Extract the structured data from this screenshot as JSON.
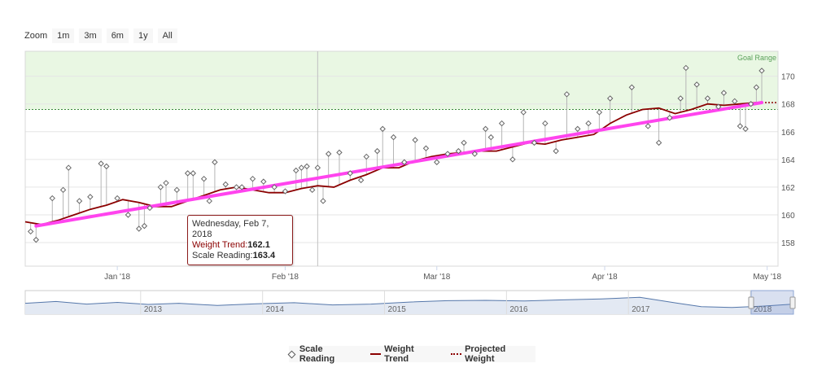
{
  "zoom": {
    "label": "Zoom",
    "buttons": [
      "1m",
      "3m",
      "6m",
      "1y",
      "All"
    ]
  },
  "colors": {
    "goal_band": "#e9f7e3",
    "trend": "#8b0000",
    "regression": "#ff44ee",
    "scale_point": "#666666",
    "navigator_line": "#5577aa"
  },
  "chart_data": {
    "type": "line",
    "goal_label": "Goal Range",
    "goal_range": [
      167.6,
      171.8
    ],
    "x_range": [
      "2017-12-15",
      "2018-05-03"
    ],
    "ylim": [
      156.3,
      171.8
    ],
    "y_ticks": [
      158,
      160,
      162,
      164,
      166,
      168,
      170
    ],
    "x_ticks": [
      {
        "label": "Jan '18",
        "date": "2018-01-01"
      },
      {
        "label": "Feb '18",
        "date": "2018-02-01"
      },
      {
        "label": "Mar '18",
        "date": "2018-03-01"
      },
      {
        "label": "Apr '18",
        "date": "2018-04-01"
      },
      {
        "label": "May '18",
        "date": "2018-05-01"
      }
    ],
    "crosshair_date": "2018-02-07",
    "series": [
      {
        "name": "Weight Trend",
        "points": [
          [
            "2017-12-15",
            159.5
          ],
          [
            "2017-12-18",
            159.3
          ],
          [
            "2017-12-21",
            159.6
          ],
          [
            "2017-12-24",
            160.0
          ],
          [
            "2017-12-27",
            160.4
          ],
          [
            "2017-12-30",
            160.7
          ],
          [
            "2018-01-02",
            161.1
          ],
          [
            "2018-01-05",
            160.9
          ],
          [
            "2018-01-08",
            160.6
          ],
          [
            "2018-01-11",
            160.6
          ],
          [
            "2018-01-14",
            161.0
          ],
          [
            "2018-01-17",
            161.4
          ],
          [
            "2018-01-20",
            161.8
          ],
          [
            "2018-01-23",
            162.0
          ],
          [
            "2018-01-26",
            161.8
          ],
          [
            "2018-01-29",
            161.6
          ],
          [
            "2018-02-01",
            161.6
          ],
          [
            "2018-02-04",
            161.9
          ],
          [
            "2018-02-07",
            162.1
          ],
          [
            "2018-02-10",
            162.0
          ],
          [
            "2018-02-13",
            162.5
          ],
          [
            "2018-02-16",
            162.9
          ],
          [
            "2018-02-19",
            163.4
          ],
          [
            "2018-02-22",
            163.4
          ],
          [
            "2018-02-25",
            163.9
          ],
          [
            "2018-02-28",
            164.2
          ],
          [
            "2018-03-03",
            164.4
          ],
          [
            "2018-03-06",
            164.5
          ],
          [
            "2018-03-09",
            164.6
          ],
          [
            "2018-03-12",
            164.6
          ],
          [
            "2018-03-15",
            164.9
          ],
          [
            "2018-03-18",
            165.2
          ],
          [
            "2018-03-21",
            165.1
          ],
          [
            "2018-03-24",
            165.4
          ],
          [
            "2018-03-27",
            165.6
          ],
          [
            "2018-03-30",
            165.8
          ],
          [
            "2018-04-02",
            166.6
          ],
          [
            "2018-04-05",
            167.2
          ],
          [
            "2018-04-08",
            167.6
          ],
          [
            "2018-04-11",
            167.7
          ],
          [
            "2018-04-14",
            167.3
          ],
          [
            "2018-04-17",
            167.6
          ],
          [
            "2018-04-20",
            168.0
          ],
          [
            "2018-04-23",
            167.9
          ],
          [
            "2018-04-26",
            168.0
          ],
          [
            "2018-04-29",
            168.1
          ]
        ]
      },
      {
        "name": "Scale Reading",
        "points": [
          [
            "2017-12-16",
            158.8
          ],
          [
            "2017-12-17",
            158.2
          ],
          [
            "2017-12-20",
            161.2
          ],
          [
            "2017-12-22",
            161.8
          ],
          [
            "2017-12-23",
            163.4
          ],
          [
            "2017-12-25",
            161.0
          ],
          [
            "2017-12-27",
            161.3
          ],
          [
            "2017-12-29",
            163.7
          ],
          [
            "2017-12-30",
            163.5
          ],
          [
            "2018-01-01",
            161.2
          ],
          [
            "2018-01-03",
            160.0
          ],
          [
            "2018-01-05",
            159.0
          ],
          [
            "2018-01-06",
            159.2
          ],
          [
            "2018-01-07",
            160.5
          ],
          [
            "2018-01-09",
            162.0
          ],
          [
            "2018-01-10",
            162.3
          ],
          [
            "2018-01-12",
            161.8
          ],
          [
            "2018-01-14",
            163.0
          ],
          [
            "2018-01-15",
            163.0
          ],
          [
            "2018-01-17",
            162.6
          ],
          [
            "2018-01-18",
            161.0
          ],
          [
            "2018-01-19",
            163.8
          ],
          [
            "2018-01-21",
            162.2
          ],
          [
            "2018-01-23",
            162.0
          ],
          [
            "2018-01-24",
            162.0
          ],
          [
            "2018-01-26",
            162.6
          ],
          [
            "2018-01-28",
            162.4
          ],
          [
            "2018-01-30",
            162.0
          ],
          [
            "2018-02-01",
            161.7
          ],
          [
            "2018-02-03",
            163.2
          ],
          [
            "2018-02-04",
            163.4
          ],
          [
            "2018-02-05",
            163.5
          ],
          [
            "2018-02-06",
            161.8
          ],
          [
            "2018-02-07",
            163.4
          ],
          [
            "2018-02-08",
            161.0
          ],
          [
            "2018-02-09",
            164.4
          ],
          [
            "2018-02-11",
            164.5
          ],
          [
            "2018-02-13",
            163.0
          ],
          [
            "2018-02-15",
            162.5
          ],
          [
            "2018-02-16",
            164.2
          ],
          [
            "2018-02-18",
            164.6
          ],
          [
            "2018-02-19",
            166.2
          ],
          [
            "2018-02-21",
            165.6
          ],
          [
            "2018-02-23",
            163.8
          ],
          [
            "2018-02-25",
            165.4
          ],
          [
            "2018-02-27",
            164.8
          ],
          [
            "2018-03-01",
            163.8
          ],
          [
            "2018-03-03",
            164.4
          ],
          [
            "2018-03-05",
            164.6
          ],
          [
            "2018-03-06",
            165.2
          ],
          [
            "2018-03-08",
            164.4
          ],
          [
            "2018-03-10",
            166.2
          ],
          [
            "2018-03-11",
            165.6
          ],
          [
            "2018-03-13",
            166.6
          ],
          [
            "2018-03-15",
            164.0
          ],
          [
            "2018-03-17",
            167.4
          ],
          [
            "2018-03-19",
            165.2
          ],
          [
            "2018-03-21",
            166.6
          ],
          [
            "2018-03-23",
            164.6
          ],
          [
            "2018-03-25",
            168.7
          ],
          [
            "2018-03-27",
            166.2
          ],
          [
            "2018-03-29",
            166.6
          ],
          [
            "2018-03-31",
            167.4
          ],
          [
            "2018-04-02",
            168.4
          ],
          [
            "2018-04-06",
            169.2
          ],
          [
            "2018-04-09",
            166.4
          ],
          [
            "2018-04-11",
            165.2
          ],
          [
            "2018-04-13",
            167.0
          ],
          [
            "2018-04-15",
            168.4
          ],
          [
            "2018-04-16",
            170.6
          ],
          [
            "2018-04-18",
            169.4
          ],
          [
            "2018-04-20",
            168.4
          ],
          [
            "2018-04-22",
            167.8
          ],
          [
            "2018-04-23",
            168.8
          ],
          [
            "2018-04-25",
            168.2
          ],
          [
            "2018-04-26",
            166.4
          ],
          [
            "2018-04-27",
            166.2
          ],
          [
            "2018-04-28",
            168.0
          ],
          [
            "2018-04-29",
            169.2
          ],
          [
            "2018-04-30",
            170.4
          ]
        ]
      },
      {
        "name": "Projected Weight",
        "points": [
          [
            "2018-04-30",
            168.1
          ],
          [
            "2018-05-03",
            168.1
          ]
        ]
      }
    ],
    "regression": {
      "start": [
        "2017-12-17",
        159.2
      ],
      "end": [
        "2018-04-30",
        168.1
      ]
    },
    "navigator": {
      "years": [
        "2013",
        "2014",
        "2015",
        "2016",
        "2017",
        "2018"
      ],
      "points": [
        [
          0,
          0.55
        ],
        [
          0.04,
          0.45
        ],
        [
          0.08,
          0.6
        ],
        [
          0.12,
          0.5
        ],
        [
          0.16,
          0.62
        ],
        [
          0.2,
          0.55
        ],
        [
          0.25,
          0.68
        ],
        [
          0.3,
          0.58
        ],
        [
          0.35,
          0.52
        ],
        [
          0.4,
          0.65
        ],
        [
          0.45,
          0.6
        ],
        [
          0.5,
          0.48
        ],
        [
          0.55,
          0.4
        ],
        [
          0.6,
          0.38
        ],
        [
          0.65,
          0.42
        ],
        [
          0.7,
          0.35
        ],
        [
          0.75,
          0.3
        ],
        [
          0.8,
          0.2
        ],
        [
          0.85,
          0.55
        ],
        [
          0.88,
          0.75
        ],
        [
          0.92,
          0.8
        ],
        [
          0.96,
          0.72
        ],
        [
          1,
          0.6
        ]
      ]
    }
  },
  "tooltip": {
    "date": "Wednesday, Feb 7, 2018",
    "trend_label": "Weight Trend:",
    "trend_value": "162.1",
    "scale_label": "Scale Reading:",
    "scale_value": "163.4"
  },
  "legend": {
    "scale": "Scale Reading",
    "trend": "Weight Trend",
    "projected": "Projected Weight"
  }
}
